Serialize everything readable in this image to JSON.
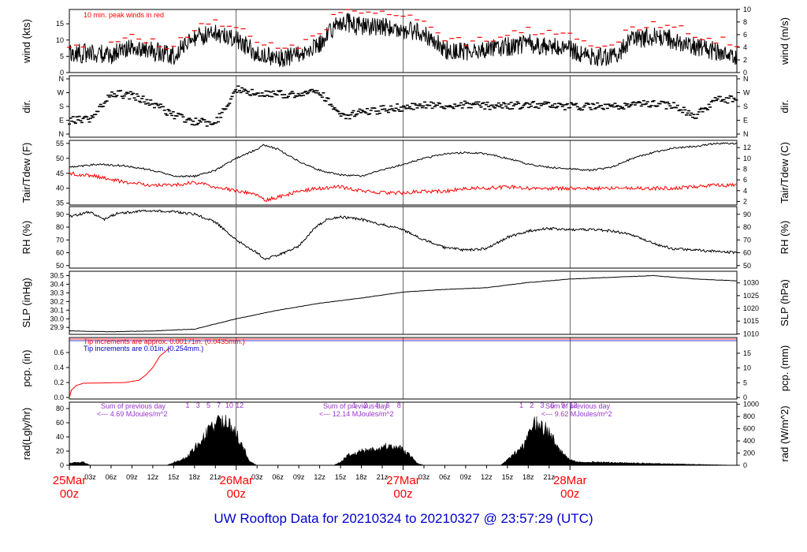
{
  "footer": {
    "title": "UW Rooftop Data for 20210324  to  20210327 @ 23:57:29  (UTC)"
  },
  "colors": {
    "trace": "#000000",
    "peak": "#ff0000",
    "dew": "#ff0000",
    "precip_note2": "#0000cc",
    "rad_note": "#9933cc",
    "date_label": "#ff0000",
    "title": "#0000cc"
  },
  "x_axis": {
    "hour_ticks": [
      "03z",
      "06z",
      "09z",
      "12z",
      "15z",
      "18z",
      "21z",
      "03z",
      "06z",
      "09z",
      "12z",
      "15z",
      "18z",
      "21z",
      "03z",
      "06z",
      "09z",
      "12z",
      "15z",
      "18z",
      "21z"
    ],
    "day_labels": [
      {
        "date": "25Mar",
        "hour": "00z"
      },
      {
        "date": "26Mar",
        "hour": "00z"
      },
      {
        "date": "27Mar",
        "hour": "00z"
      },
      {
        "date": "28Mar",
        "hour": "00z"
      }
    ]
  },
  "chart_data": [
    {
      "id": "wind",
      "type": "line",
      "left_label": "wind (kts)",
      "right_label": "wind (m/s)",
      "annotation": "10 min. peak winds in red",
      "left_ticks": [
        "0",
        "5",
        "10",
        "15"
      ],
      "right_ticks": [
        "0",
        "2",
        "4",
        "6",
        "8",
        "10"
      ],
      "ylim": [
        0,
        19.4
      ],
      "series_points": [
        [
          0,
          6
        ],
        [
          6,
          5.5
        ],
        [
          9,
          8
        ],
        [
          12,
          6.5
        ],
        [
          15,
          5
        ],
        [
          18,
          11
        ],
        [
          21,
          12
        ],
        [
          24,
          10
        ],
        [
          27,
          6
        ],
        [
          30,
          4.5
        ],
        [
          33,
          5.5
        ],
        [
          36,
          9
        ],
        [
          39,
          16
        ],
        [
          42,
          14
        ],
        [
          45,
          14
        ],
        [
          48,
          13
        ],
        [
          51,
          12
        ],
        [
          54,
          7
        ],
        [
          57,
          6
        ],
        [
          60,
          7
        ],
        [
          63,
          8
        ],
        [
          66,
          9
        ],
        [
          69,
          8
        ],
        [
          72,
          7
        ],
        [
          75,
          5
        ],
        [
          78,
          4.5
        ],
        [
          81,
          10
        ],
        [
          84,
          11
        ],
        [
          87,
          10
        ],
        [
          90,
          8
        ],
        [
          93,
          6.5
        ],
        [
          96,
          5
        ]
      ],
      "peak_points": [
        [
          0,
          9
        ],
        [
          6,
          8.5
        ],
        [
          9,
          11
        ],
        [
          12,
          9.5
        ],
        [
          15,
          8
        ],
        [
          18,
          14
        ],
        [
          21,
          15
        ],
        [
          24,
          14
        ],
        [
          27,
          9
        ],
        [
          30,
          7.5
        ],
        [
          33,
          8.5
        ],
        [
          36,
          12
        ],
        [
          39,
          19
        ],
        [
          42,
          18
        ],
        [
          45,
          18
        ],
        [
          48,
          17
        ],
        [
          51,
          16
        ],
        [
          54,
          11
        ],
        [
          57,
          9.5
        ],
        [
          60,
          10.5
        ],
        [
          63,
          11
        ],
        [
          66,
          13
        ],
        [
          69,
          12
        ],
        [
          72,
          11
        ],
        [
          75,
          9
        ],
        [
          78,
          8
        ],
        [
          81,
          14
        ],
        [
          84,
          15
        ],
        [
          87,
          14
        ],
        [
          90,
          12
        ],
        [
          93,
          10
        ],
        [
          96,
          9
        ]
      ]
    },
    {
      "id": "dir",
      "type": "scatter",
      "left_label": "dir.",
      "right_label": "dir.",
      "left_ticks": [
        "N",
        "E",
        "S",
        "W",
        "N"
      ],
      "right_ticks": [
        "N",
        "E",
        "S",
        "W",
        "N"
      ],
      "ylim": [
        0,
        360
      ],
      "series_points": [
        [
          0,
          90
        ],
        [
          3,
          100
        ],
        [
          6,
          270
        ],
        [
          9,
          250
        ],
        [
          12,
          200
        ],
        [
          15,
          120
        ],
        [
          18,
          80
        ],
        [
          21,
          70
        ],
        [
          24,
          290
        ],
        [
          27,
          270
        ],
        [
          30,
          260
        ],
        [
          33,
          250
        ],
        [
          36,
          280
        ],
        [
          39,
          110
        ],
        [
          42,
          140
        ],
        [
          45,
          160
        ],
        [
          48,
          175
        ],
        [
          51,
          190
        ],
        [
          54,
          190
        ],
        [
          57,
          190
        ],
        [
          60,
          185
        ],
        [
          63,
          180
        ],
        [
          66,
          190
        ],
        [
          69,
          185
        ],
        [
          72,
          180
        ],
        [
          75,
          180
        ],
        [
          78,
          175
        ],
        [
          81,
          190
        ],
        [
          84,
          200
        ],
        [
          87,
          180
        ],
        [
          90,
          120
        ],
        [
          93,
          220
        ],
        [
          96,
          230
        ]
      ]
    },
    {
      "id": "temp",
      "type": "line",
      "left_label": "Tair/Tdew (F)",
      "right_label": "Tair/Tdew (C)",
      "left_ticks": [
        "35",
        "40",
        "45",
        "50",
        "55"
      ],
      "right_ticks": [
        "2",
        "4",
        "6",
        "8",
        "10",
        "12"
      ],
      "ylim": [
        34.4,
        56.0
      ],
      "series": [
        {
          "role": "tair",
          "points": [
            [
              0,
              47
            ],
            [
              4,
              48
            ],
            [
              8,
              47.5
            ],
            [
              12,
              46
            ],
            [
              15,
              44
            ],
            [
              18,
              44
            ],
            [
              21,
              46
            ],
            [
              24,
              50
            ],
            [
              27,
              53
            ],
            [
              28,
              54.5
            ],
            [
              30,
              53
            ],
            [
              33,
              49
            ],
            [
              36,
              46
            ],
            [
              39,
              44.5
            ],
            [
              42,
              44
            ],
            [
              45,
              46
            ],
            [
              48,
              48
            ],
            [
              51,
              50
            ],
            [
              54,
              51.5
            ],
            [
              57,
              52
            ],
            [
              60,
              51.5
            ],
            [
              63,
              50
            ],
            [
              66,
              48
            ],
            [
              69,
              47
            ],
            [
              72,
              46.5
            ],
            [
              75,
              46
            ],
            [
              78,
              47
            ],
            [
              81,
              50
            ],
            [
              84,
              52
            ],
            [
              87,
              53.5
            ],
            [
              90,
              54
            ],
            [
              93,
              55
            ],
            [
              96,
              55
            ]
          ]
        },
        {
          "role": "tdew",
          "points": [
            [
              0,
              45
            ],
            [
              4,
              44
            ],
            [
              8,
              42
            ],
            [
              12,
              41
            ],
            [
              15,
              41
            ],
            [
              18,
              42
            ],
            [
              21,
              40.5
            ],
            [
              24,
              39
            ],
            [
              27,
              38
            ],
            [
              28,
              36
            ],
            [
              30,
              37
            ],
            [
              33,
              39
            ],
            [
              36,
              40
            ],
            [
              39,
              40.5
            ],
            [
              42,
              39
            ],
            [
              45,
              38.5
            ],
            [
              48,
              38.5
            ],
            [
              51,
              39
            ],
            [
              54,
              39
            ],
            [
              57,
              40
            ],
            [
              60,
              40
            ],
            [
              63,
              40.5
            ],
            [
              66,
              40
            ],
            [
              69,
              40
            ],
            [
              72,
              40
            ],
            [
              75,
              40
            ],
            [
              78,
              40
            ],
            [
              81,
              40
            ],
            [
              84,
              40
            ],
            [
              87,
              40
            ],
            [
              90,
              40.5
            ],
            [
              93,
              41
            ],
            [
              96,
              41
            ]
          ]
        }
      ]
    },
    {
      "id": "rh",
      "type": "line",
      "left_label": "RH (%)",
      "right_label": "RH (%)",
      "left_ticks": [
        "50",
        "60",
        "70",
        "80",
        "90"
      ],
      "right_ticks": [
        "50",
        "60",
        "70",
        "80",
        "90"
      ],
      "ylim": [
        48,
        96
      ],
      "series_points": [
        [
          0,
          88
        ],
        [
          3,
          92
        ],
        [
          5,
          86
        ],
        [
          7,
          91
        ],
        [
          12,
          93
        ],
        [
          15,
          92
        ],
        [
          18,
          90
        ],
        [
          21,
          84
        ],
        [
          24,
          70
        ],
        [
          27,
          60
        ],
        [
          28,
          55
        ],
        [
          30,
          58
        ],
        [
          33,
          65
        ],
        [
          35,
          78
        ],
        [
          37,
          86
        ],
        [
          39,
          88
        ],
        [
          42,
          86
        ],
        [
          45,
          82
        ],
        [
          48,
          78
        ],
        [
          51,
          70
        ],
        [
          54,
          64
        ],
        [
          57,
          62
        ],
        [
          60,
          63
        ],
        [
          63,
          72
        ],
        [
          66,
          77
        ],
        [
          69,
          79
        ],
        [
          72,
          78
        ],
        [
          75,
          78
        ],
        [
          78,
          77
        ],
        [
          81,
          74
        ],
        [
          84,
          67
        ],
        [
          87,
          63
        ],
        [
          90,
          62
        ],
        [
          93,
          61
        ],
        [
          96,
          60
        ]
      ]
    },
    {
      "id": "slp",
      "type": "line",
      "left_label": "SLP (inHg)",
      "right_label": "SLP (hPa)",
      "left_ticks": [
        "29.9",
        "30.0",
        "30.1",
        "30.2",
        "30.3",
        "30.4",
        "30.5"
      ],
      "right_ticks": [
        "1010",
        "1015",
        "1020",
        "1025",
        "1030"
      ],
      "ylim": [
        29.82,
        30.55
      ],
      "series_points": [
        [
          0,
          29.86
        ],
        [
          6,
          29.85
        ],
        [
          12,
          29.86
        ],
        [
          18,
          29.88
        ],
        [
          21,
          29.94
        ],
        [
          24,
          30.0
        ],
        [
          30,
          30.1
        ],
        [
          36,
          30.18
        ],
        [
          42,
          30.24
        ],
        [
          48,
          30.31
        ],
        [
          54,
          30.34
        ],
        [
          60,
          30.36
        ],
        [
          66,
          30.42
        ],
        [
          72,
          30.46
        ],
        [
          78,
          30.48
        ],
        [
          84,
          30.5
        ],
        [
          90,
          30.46
        ],
        [
          96,
          30.44
        ]
      ]
    },
    {
      "id": "pcp",
      "type": "line",
      "left_label": "pcp. (in)",
      "right_label": "pcp. (mm)",
      "notes": [
        "Tip increments are approx. 0.00171in. (0.0435mm.)",
        "Tip increments are 0.01in. (0.254mm.)"
      ],
      "left_ticks": [
        "0.0",
        "0.2",
        "0.4",
        "0.6"
      ],
      "right_ticks": [
        "0",
        "5",
        "10",
        "15"
      ],
      "ylim": [
        -0.02,
        0.8
      ],
      "series_points": [
        [
          0,
          0.0
        ],
        [
          0.3,
          0.1
        ],
        [
          1,
          0.16
        ],
        [
          2,
          0.19
        ],
        [
          8,
          0.2
        ],
        [
          10,
          0.23
        ],
        [
          11,
          0.3
        ],
        [
          12,
          0.4
        ],
        [
          13,
          0.55
        ],
        [
          14,
          0.63
        ],
        [
          14.5,
          0.66
        ]
      ]
    },
    {
      "id": "rad",
      "type": "area",
      "left_label": "rad(Lgly/hr)",
      "right_label": "rad (W/m^2)",
      "left_ticks": [
        "0",
        "20",
        "40",
        "60",
        "80"
      ],
      "right_ticks": [
        "0",
        "200",
        "400",
        "600",
        "800",
        "1000"
      ],
      "ylim": [
        0,
        89
      ],
      "notes": [
        {
          "line1": "Sum of previous day",
          "line2": "<--- 4.69 MJoules/m^2"
        },
        {
          "line1": "Sum of previous day",
          "line2": "<--- 12.14 MJoules/m^2"
        },
        {
          "line1": "Sum of previous day",
          "line2": "<--- 9.62 MJoules/m^2"
        }
      ],
      "hour_marks": [
        [
          "1",
          "3",
          "5",
          "7",
          "10",
          "12"
        ],
        [
          "1",
          "2",
          "4",
          "6",
          "8"
        ],
        [
          "1",
          "2",
          "3",
          "6",
          "9",
          "12"
        ]
      ],
      "series_points": [
        [
          0,
          3
        ],
        [
          2,
          5
        ],
        [
          3,
          0
        ],
        [
          14,
          0
        ],
        [
          15,
          4
        ],
        [
          17,
          12
        ],
        [
          18,
          25
        ],
        [
          19,
          38
        ],
        [
          20,
          48
        ],
        [
          21,
          60
        ],
        [
          22,
          62
        ],
        [
          23,
          58
        ],
        [
          24,
          45
        ],
        [
          25,
          25
        ],
        [
          26,
          5
        ],
        [
          27,
          0
        ],
        [
          38,
          0
        ],
        [
          39,
          5
        ],
        [
          40,
          14
        ],
        [
          42,
          20
        ],
        [
          44,
          24
        ],
        [
          45,
          26
        ],
        [
          46,
          28
        ],
        [
          47,
          26
        ],
        [
          48,
          22
        ],
        [
          49,
          14
        ],
        [
          50,
          3
        ],
        [
          51,
          0
        ],
        [
          62,
          0
        ],
        [
          63,
          8
        ],
        [
          64,
          18
        ],
        [
          65,
          24
        ],
        [
          66,
          40
        ],
        [
          67,
          60
        ],
        [
          68,
          55
        ],
        [
          69,
          48
        ],
        [
          70,
          30
        ],
        [
          71,
          16
        ],
        [
          72,
          8
        ],
        [
          73,
          5
        ],
        [
          96,
          0
        ]
      ]
    }
  ]
}
